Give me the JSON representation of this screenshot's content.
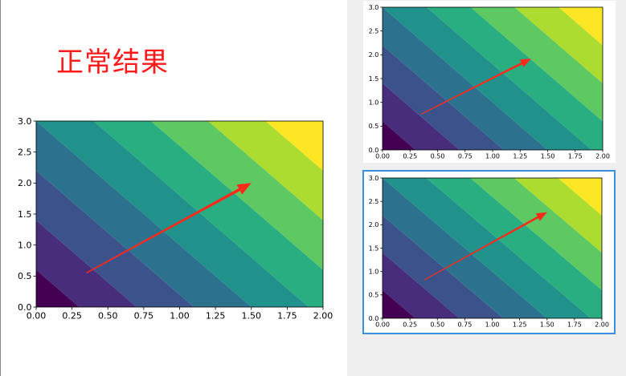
{
  "heading": "正常结果",
  "colors": {
    "arrow": "#ff2a1a",
    "highlight_border": "#3d8fe0",
    "levels": [
      "#440154",
      "#472d7b",
      "#3b528b",
      "#2c728e",
      "#21918c",
      "#28ae80",
      "#5ec962",
      "#addc30",
      "#fde725"
    ]
  },
  "chart_data": [
    {
      "type": "contourf",
      "name": "main",
      "xlim": [
        0,
        2
      ],
      "ylim": [
        0,
        3
      ],
      "x_ticks": [
        "0.00",
        "0.25",
        "0.50",
        "0.75",
        "1.00",
        "1.25",
        "1.50",
        "1.75",
        "2.00"
      ],
      "y_ticks": [
        "0.0",
        "0.5",
        "1.0",
        "1.5",
        "2.0",
        "2.5",
        "3.0"
      ],
      "field": "x + y/2",
      "levels": [
        0,
        0.3,
        0.7,
        1.1,
        1.5,
        1.9,
        2.3,
        2.7,
        3.1,
        3.5
      ],
      "arrow": {
        "from": [
          0.35,
          0.55
        ],
        "to": [
          1.5,
          2.0
        ]
      }
    },
    {
      "type": "contourf",
      "name": "top-right",
      "xlim": [
        0,
        2
      ],
      "ylim": [
        0,
        3
      ],
      "x_ticks": [
        "0.00",
        "0.25",
        "0.50",
        "0.75",
        "1.00",
        "1.25",
        "1.50",
        "1.75",
        "2.00"
      ],
      "y_ticks": [
        "0.0",
        "0.5",
        "1.0",
        "1.5",
        "2.0",
        "2.5",
        "3.0"
      ],
      "field": "x + y/2",
      "levels": [
        0,
        0.3,
        0.7,
        1.1,
        1.5,
        1.9,
        2.3,
        2.7,
        3.1,
        3.5
      ],
      "arrow": {
        "from": [
          0.35,
          0.75
        ],
        "to": [
          1.35,
          1.92
        ]
      }
    },
    {
      "type": "contourf",
      "name": "bottom-right",
      "xlim": [
        0,
        2
      ],
      "ylim": [
        0,
        3
      ],
      "x_ticks": [
        "0.00",
        "0.25",
        "0.50",
        "0.75",
        "1.00",
        "1.25",
        "1.50",
        "1.75",
        "2.00"
      ],
      "y_ticks": [
        "0.0",
        "0.5",
        "1.0",
        "1.5",
        "2.0",
        "2.5",
        "3.0"
      ],
      "field": "x + y/2",
      "levels": [
        0,
        0.3,
        0.7,
        1.1,
        1.5,
        1.9,
        2.3,
        2.7,
        3.1,
        3.5
      ],
      "arrow": {
        "from": [
          0.38,
          0.82
        ],
        "to": [
          1.5,
          2.27
        ]
      }
    }
  ]
}
